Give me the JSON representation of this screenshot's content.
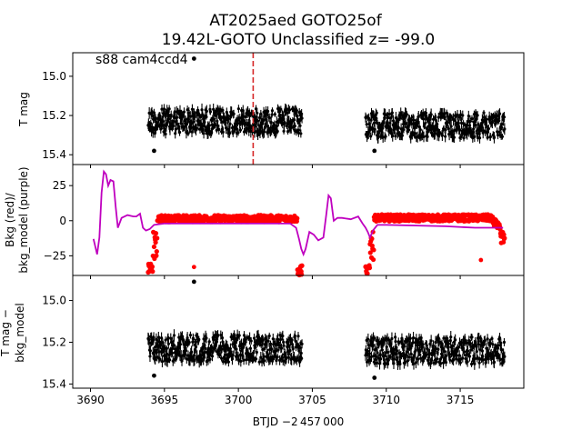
{
  "figure": {
    "title_line1": "AT2025aed  GOTO25of",
    "title_line2": "19.42L-GOTO Unclassified z= -99.0",
    "xlabel": "BTJD −2 457 000"
  },
  "chart_data": [
    {
      "type": "scatter",
      "panel": "top",
      "ylabel": "T mag",
      "annotation": "s88 cam4ccd4",
      "xlim": [
        3688.8,
        3719.3
      ],
      "ylim": [
        15.45,
        14.88
      ],
      "y_inverted": true,
      "xticks": [
        3690,
        3695,
        3700,
        3705,
        3710,
        3715
      ],
      "yticks": [
        15.0,
        15.2,
        15.4
      ],
      "ytick_labels": [
        "15.0",
        "15.2",
        "15.4"
      ],
      "vline": {
        "x": 3701.0,
        "color": "#d62728",
        "style": "dashed"
      },
      "segments": [
        {
          "x_start": 3693.9,
          "x_end": 3704.3,
          "y_mid": 15.23,
          "y_half_range": 0.1
        },
        {
          "x_start": 3708.6,
          "x_end": 3718.0,
          "y_mid": 15.25,
          "y_half_range": 0.1
        }
      ],
      "outliers": [
        {
          "x": 3697.0,
          "y": 14.91
        },
        {
          "x": 3694.3,
          "y": 15.38
        },
        {
          "x": 3709.2,
          "y": 15.38
        }
      ],
      "marker_color": "#000000"
    },
    {
      "type": "line",
      "panel": "middle",
      "ylabel_line1": "Bkg (red)/",
      "ylabel_line2": "bkg_model (purple)",
      "xlim": [
        3688.8,
        3719.3
      ],
      "ylim": [
        -39,
        40
      ],
      "xticks": [
        3690,
        3695,
        3700,
        3705,
        3710,
        3715
      ],
      "yticks": [
        25,
        0,
        -25
      ],
      "ytick_labels": [
        "25",
        "0",
        "−25"
      ],
      "series": [
        {
          "role": "model",
          "color": "#bf00bf",
          "x": [
            3690.2,
            3690.45,
            3690.6,
            3690.75,
            3690.9,
            3691.05,
            3691.2,
            3691.35,
            3691.55,
            3691.7,
            3691.85,
            3692.1,
            3692.5,
            3692.9,
            3693.1,
            3693.35,
            3693.55,
            3693.75,
            3694.0,
            3694.3,
            3695.0,
            3700.0,
            3703.5,
            3703.9,
            3704.1,
            3704.25,
            3704.4,
            3704.55,
            3704.8,
            3705.1,
            3705.4,
            3705.75,
            3705.95,
            3706.1,
            3706.25,
            3706.45,
            3706.7,
            3707.0,
            3707.6,
            3708.1,
            3708.4,
            3708.6,
            3708.75,
            3708.9,
            3709.1,
            3709.4,
            3710.0,
            3714.0,
            3716.0,
            3717.9
          ],
          "y": [
            -13,
            -24,
            -12,
            20,
            35,
            33,
            25,
            29,
            28,
            10,
            -5,
            2,
            4,
            3,
            3,
            5,
            -5,
            -7,
            -6,
            -3,
            -2,
            -2,
            -2,
            -5,
            -13,
            -20,
            -24,
            -20,
            -8,
            -10,
            -14,
            -12,
            5,
            18,
            16,
            0,
            2,
            2,
            1,
            3,
            -2,
            -5,
            -8,
            -12,
            -7,
            -3,
            -3,
            -4,
            -5,
            -5
          ]
        }
      ],
      "scatter_segments": [
        {
          "role": "bkg",
          "color": "#ff0000",
          "x_start": 3693.9,
          "x_end": 3704.3,
          "y_mid": 1.5,
          "y_half_range": 4,
          "ramp_start_y": -35,
          "ramp_end_y": -35
        },
        {
          "role": "bkg",
          "color": "#ff0000",
          "x_start": 3708.6,
          "x_end": 3718.0,
          "y_mid": 2,
          "y_half_range": 4,
          "ramp_start_y": -36,
          "ramp_end_y": -12
        }
      ],
      "outliers": [
        {
          "x": 3697.0,
          "y": -33,
          "color": "#ff0000"
        },
        {
          "x": 3716.4,
          "y": -28,
          "color": "#ff0000"
        }
      ]
    },
    {
      "type": "scatter",
      "panel": "bottom",
      "ylabel_line1": "T mag −",
      "ylabel_line2": "bkg_model",
      "xlim": [
        3688.8,
        3719.3
      ],
      "ylim": [
        15.42,
        14.88
      ],
      "y_inverted": true,
      "xticks": [
        3690,
        3695,
        3700,
        3705,
        3710,
        3715
      ],
      "xtick_labels": [
        "3690",
        "3695",
        "3700",
        "3705",
        "3710",
        "3715"
      ],
      "yticks": [
        15.0,
        15.2,
        15.4
      ],
      "ytick_labels": [
        "15.0",
        "15.2",
        "15.4"
      ],
      "segments": [
        {
          "x_start": 3693.9,
          "x_end": 3704.3,
          "y_mid": 15.23,
          "y_half_range": 0.1
        },
        {
          "x_start": 3708.6,
          "x_end": 3718.0,
          "y_mid": 15.24,
          "y_half_range": 0.1
        }
      ],
      "outliers": [
        {
          "x": 3697.0,
          "y": 14.91
        },
        {
          "x": 3694.3,
          "y": 15.36
        },
        {
          "x": 3709.2,
          "y": 15.37
        }
      ],
      "marker_color": "#000000"
    }
  ]
}
